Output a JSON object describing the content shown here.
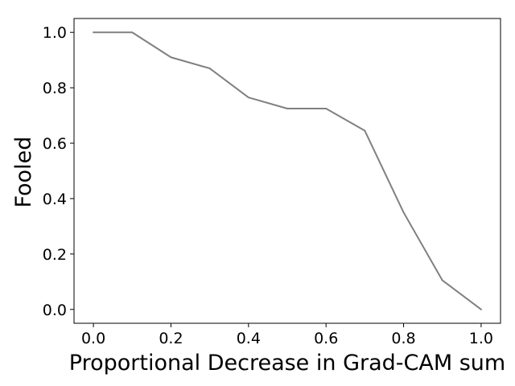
{
  "chart_data": {
    "type": "line",
    "xlabel": "Proportional Decrease in Grad-CAM sum",
    "ylabel": "Fooled",
    "xlim": [
      -0.05,
      1.05
    ],
    "ylim": [
      -0.05,
      1.05
    ],
    "x_ticks": [
      "0.0",
      "0.2",
      "0.4",
      "0.6",
      "0.8",
      "1.0"
    ],
    "y_ticks": [
      "0.0",
      "0.2",
      "0.4",
      "0.6",
      "0.8",
      "1.0"
    ],
    "grid": false,
    "series": [
      {
        "color": "#808080",
        "x": [
          0.0,
          0.1,
          0.2,
          0.3,
          0.4,
          0.5,
          0.6,
          0.7,
          0.8,
          0.9,
          1.0
        ],
        "y": [
          1.0,
          1.0,
          0.91,
          0.87,
          0.765,
          0.725,
          0.725,
          0.645,
          0.35,
          0.105,
          0.0
        ]
      }
    ]
  }
}
